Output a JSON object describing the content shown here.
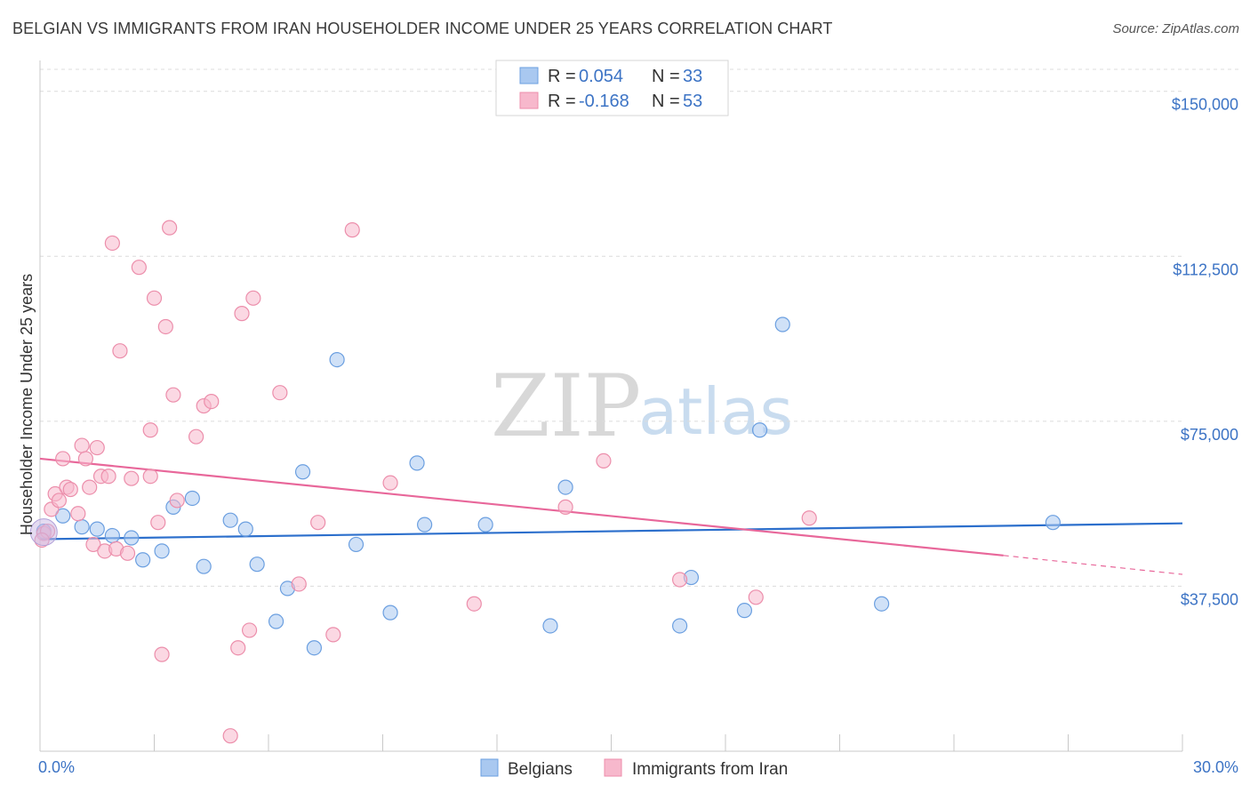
{
  "title": "BELGIAN VS IMMIGRANTS FROM IRAN HOUSEHOLDER INCOME UNDER 25 YEARS CORRELATION CHART",
  "source": "Source: ZipAtlas.com",
  "watermark": {
    "zip": "ZIP",
    "atlas": "atlas"
  },
  "legend_top": {
    "r_label": "R =",
    "n_label": "N =",
    "rows": [
      {
        "r": "0.054",
        "n": "33",
        "color": "#a9c8f0"
      },
      {
        "r": "-0.168",
        "n": "53",
        "color": "#f7b8cc"
      }
    ]
  },
  "legend_bottom": [
    {
      "label": "Belgians",
      "color": "#a9c8f0"
    },
    {
      "label": "Immigrants from Iran",
      "color": "#f7b8cc"
    }
  ],
  "chart_data": {
    "type": "scatter",
    "ylabel": "Householder Income Under 25 years",
    "xlim": [
      0,
      30
    ],
    "ylim": [
      0,
      155000
    ],
    "yticks": [
      37500,
      75000,
      112500,
      150000
    ],
    "ytick_labels": [
      "$37,500",
      "$75,000",
      "$112,500",
      "$150,000"
    ],
    "xtick_labels": [
      "0.0%",
      "30.0%"
    ],
    "grid": true,
    "series": [
      {
        "name": "Belgians",
        "color": "#a9c8f0",
        "stroke": "#6b9fe0",
        "trend": {
          "x": [
            0,
            30
          ],
          "y": [
            48200,
            51800
          ],
          "color": "#2c6fcc"
        },
        "points": [
          [
            0.1,
            50000
          ],
          [
            0.6,
            53500
          ],
          [
            1.1,
            51000
          ],
          [
            1.5,
            50500
          ],
          [
            1.9,
            49000
          ],
          [
            2.4,
            48500
          ],
          [
            2.7,
            43500
          ],
          [
            3.2,
            45500
          ],
          [
            3.5,
            55500
          ],
          [
            4.0,
            57500
          ],
          [
            4.3,
            42000
          ],
          [
            5.0,
            52500
          ],
          [
            5.4,
            50500
          ],
          [
            5.7,
            42500
          ],
          [
            6.2,
            29500
          ],
          [
            6.5,
            37000
          ],
          [
            6.9,
            63500
          ],
          [
            7.2,
            23500
          ],
          [
            7.8,
            89000
          ],
          [
            8.3,
            47000
          ],
          [
            9.2,
            31500
          ],
          [
            9.9,
            65500
          ],
          [
            10.1,
            51500
          ],
          [
            11.7,
            51500
          ],
          [
            13.4,
            28500
          ],
          [
            13.8,
            60000
          ],
          [
            16.8,
            28500
          ],
          [
            17.1,
            39500
          ],
          [
            18.5,
            32000
          ],
          [
            18.9,
            73000
          ],
          [
            19.5,
            97000
          ],
          [
            22.1,
            33500
          ],
          [
            26.6,
            52000
          ]
        ]
      },
      {
        "name": "Immigrants from Iran",
        "color": "#f7b8cc",
        "stroke": "#ec8eab",
        "trend": {
          "x": [
            0,
            25.3
          ],
          "y": [
            66500,
            44500
          ],
          "dash_x": [
            25.3,
            30
          ],
          "dash_y": [
            44500,
            40200
          ],
          "color": "#e8679a"
        },
        "points": [
          [
            0.1,
            49500
          ],
          [
            0.2,
            50000
          ],
          [
            0.3,
            55000
          ],
          [
            0.4,
            58500
          ],
          [
            0.5,
            57000
          ],
          [
            0.6,
            66500
          ],
          [
            0.7,
            60000
          ],
          [
            0.8,
            59500
          ],
          [
            1.0,
            54000
          ],
          [
            1.1,
            69500
          ],
          [
            1.2,
            66500
          ],
          [
            1.3,
            60000
          ],
          [
            1.4,
            47000
          ],
          [
            1.5,
            69000
          ],
          [
            1.6,
            62500
          ],
          [
            1.7,
            45500
          ],
          [
            1.8,
            62500
          ],
          [
            1.9,
            115500
          ],
          [
            2.0,
            46000
          ],
          [
            2.1,
            91000
          ],
          [
            2.3,
            45000
          ],
          [
            2.4,
            62000
          ],
          [
            2.6,
            110000
          ],
          [
            2.9,
            62500
          ],
          [
            2.9,
            73000
          ],
          [
            3.0,
            103000
          ],
          [
            3.1,
            52000
          ],
          [
            3.2,
            22000
          ],
          [
            3.3,
            96500
          ],
          [
            3.4,
            119000
          ],
          [
            3.5,
            81000
          ],
          [
            3.6,
            57000
          ],
          [
            4.1,
            71500
          ],
          [
            4.3,
            78500
          ],
          [
            4.5,
            79500
          ],
          [
            5.0,
            3500
          ],
          [
            5.2,
            23500
          ],
          [
            5.3,
            99500
          ],
          [
            5.5,
            27500
          ],
          [
            5.6,
            103000
          ],
          [
            6.3,
            81500
          ],
          [
            6.8,
            38000
          ],
          [
            7.3,
            52000
          ],
          [
            7.7,
            26500
          ],
          [
            8.2,
            118500
          ],
          [
            9.2,
            61000
          ],
          [
            11.4,
            33500
          ],
          [
            13.8,
            55500
          ],
          [
            14.8,
            66000
          ],
          [
            16.8,
            39000
          ],
          [
            18.8,
            35000
          ],
          [
            20.2,
            53000
          ],
          [
            0.05,
            48000
          ]
        ]
      }
    ]
  }
}
